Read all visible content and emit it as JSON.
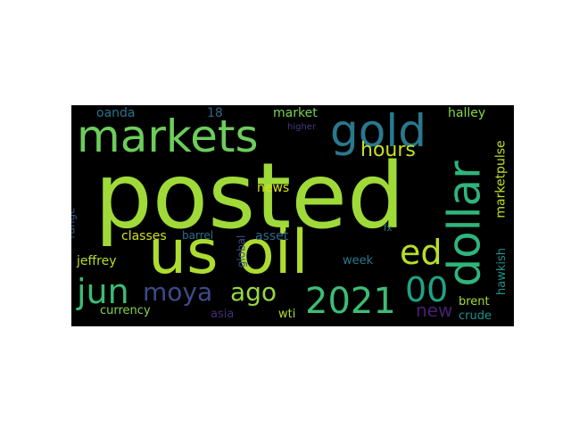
{
  "words": [
    {
      "text": "posted",
      "color": "#a0da39"
    },
    {
      "text": "us oil",
      "color": "#addc30"
    },
    {
      "text": "markets",
      "color": "#6ccd5a"
    },
    {
      "text": "gold",
      "color": "#2a788e"
    },
    {
      "text": "dollar",
      "color": "#2fb47c"
    },
    {
      "text": "jun",
      "color": "#3bbb75"
    },
    {
      "text": "2021",
      "color": "#3dbc74"
    },
    {
      "text": "ed",
      "color": "#b8de29"
    },
    {
      "text": "00",
      "color": "#1fa287"
    },
    {
      "text": "moya",
      "color": "#3e4a89"
    },
    {
      "text": "ago",
      "color": "#95d840"
    },
    {
      "text": "hours",
      "color": "#c8e020"
    },
    {
      "text": "new",
      "color": "#481f70"
    },
    {
      "text": "marketpulse",
      "color": "#c2df23"
    },
    {
      "text": "news",
      "color": "#d8e219"
    },
    {
      "text": "oanda",
      "color": "#2c718e"
    },
    {
      "text": "18",
      "color": "#33638d"
    },
    {
      "text": "market",
      "color": "#7ad151"
    },
    {
      "text": "halley",
      "color": "#86d549"
    },
    {
      "text": "higher",
      "color": "#443a83"
    },
    {
      "text": "classes",
      "color": "#d2e21b"
    },
    {
      "text": "barrel",
      "color": "#2e6e8e"
    },
    {
      "text": "asset",
      "color": "#31688e"
    },
    {
      "text": "jeffrey",
      "color": "#b5de2b"
    },
    {
      "text": "global",
      "color": "#3b518b"
    },
    {
      "text": "range",
      "color": "#365c8d"
    },
    {
      "text": "week",
      "color": "#297a8e"
    },
    {
      "text": "fx",
      "color": "#26828e"
    },
    {
      "text": "hawkish",
      "color": "#21908d"
    },
    {
      "text": "brent",
      "color": "#a5db36"
    },
    {
      "text": "currency",
      "color": "#84d44b"
    },
    {
      "text": "asia",
      "color": "#472c7a"
    },
    {
      "text": "wti",
      "color": "#b0dd2f"
    },
    {
      "text": "crude",
      "color": "#20928c"
    }
  ]
}
